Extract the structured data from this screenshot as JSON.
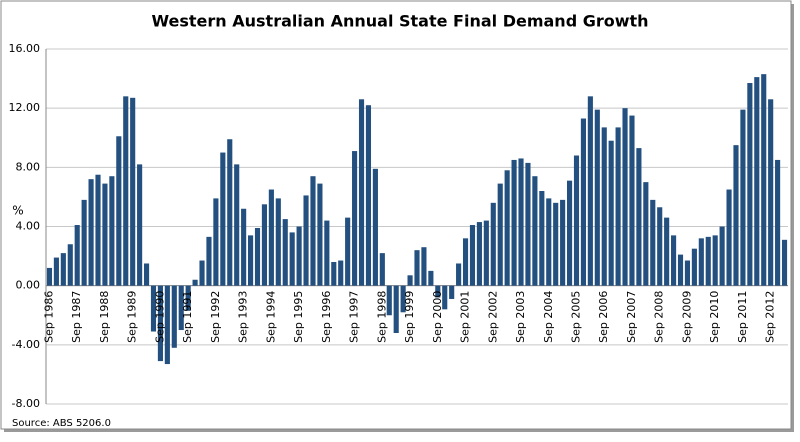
{
  "chart_data": {
    "type": "bar",
    "title": "Western Australian Annual State Final Demand Growth",
    "y_label": "%",
    "source": "Source: ABS 5206.0",
    "color": "#24507f",
    "grid": true,
    "ylim": [
      -8,
      16
    ],
    "yticks": [
      {
        "value": -8,
        "label": "-8.00"
      },
      {
        "value": -4,
        "label": "-4.00"
      },
      {
        "value": 0,
        "label": "0.00"
      },
      {
        "value": 4,
        "label": "4.00"
      },
      {
        "value": 8,
        "label": "8.00"
      },
      {
        "value": 12,
        "label": "12.00"
      },
      {
        "value": 16,
        "label": "16.00"
      }
    ],
    "categories": [
      "Sep 1986",
      null,
      null,
      null,
      "Sep 1987",
      null,
      null,
      null,
      "Sep 1988",
      null,
      null,
      null,
      "Sep 1989",
      null,
      null,
      null,
      "Sep 1990",
      null,
      null,
      null,
      "Sep 1991",
      null,
      null,
      null,
      "Sep 1992",
      null,
      null,
      null,
      "Sep 1993",
      null,
      null,
      null,
      "Sep 1994",
      null,
      null,
      null,
      "Sep 1995",
      null,
      null,
      null,
      "Sep 1996",
      null,
      null,
      null,
      "Sep 1997",
      null,
      null,
      null,
      "Sep 1998",
      null,
      null,
      null,
      "Sep 1999",
      null,
      null,
      null,
      "Sep 2000",
      null,
      null,
      null,
      "Sep 2001",
      null,
      null,
      null,
      "Sep 2002",
      null,
      null,
      null,
      "Sep 2003",
      null,
      null,
      null,
      "Sep 2004",
      null,
      null,
      null,
      "Sep 2005",
      null,
      null,
      null,
      "Sep 2006",
      null,
      null,
      null,
      "Sep 2007",
      null,
      null,
      null,
      "Sep 2008",
      null,
      null,
      null,
      "Sep 2009",
      null,
      null,
      null,
      "Sep 2010",
      null,
      null,
      null,
      "Sep 2011",
      null,
      null,
      null,
      "Sep 2012",
      null,
      null
    ],
    "values": [
      1.2,
      1.9,
      2.2,
      2.8,
      4.1,
      5.8,
      7.2,
      7.5,
      6.9,
      7.4,
      10.1,
      12.8,
      12.7,
      8.2,
      1.5,
      -3.1,
      -5.1,
      -5.3,
      -4.2,
      -3.0,
      -1.7,
      0.4,
      1.7,
      3.3,
      5.9,
      9.0,
      9.9,
      8.2,
      5.2,
      3.4,
      3.9,
      5.5,
      6.5,
      5.9,
      4.5,
      3.6,
      4.0,
      6.1,
      7.4,
      6.9,
      4.4,
      1.6,
      1.7,
      4.6,
      9.1,
      12.6,
      12.2,
      7.9,
      2.2,
      -2.0,
      -3.2,
      -1.8,
      0.7,
      2.4,
      2.6,
      1.0,
      -0.8,
      -1.6,
      -0.9,
      1.5,
      3.2,
      4.1,
      4.3,
      4.4,
      5.6,
      6.9,
      7.8,
      8.5,
      8.6,
      8.3,
      7.4,
      6.4,
      5.9,
      5.6,
      5.8,
      7.1,
      8.8,
      11.3,
      12.8,
      11.9,
      10.7,
      9.8,
      10.7,
      12.0,
      11.5,
      9.3,
      7.0,
      5.8,
      5.3,
      4.6,
      3.4,
      2.1,
      1.7,
      2.5,
      3.2,
      3.3,
      3.4,
      4.0,
      6.5,
      9.5,
      11.9,
      13.7,
      14.1,
      14.3,
      12.6,
      8.5,
      3.1
    ]
  }
}
